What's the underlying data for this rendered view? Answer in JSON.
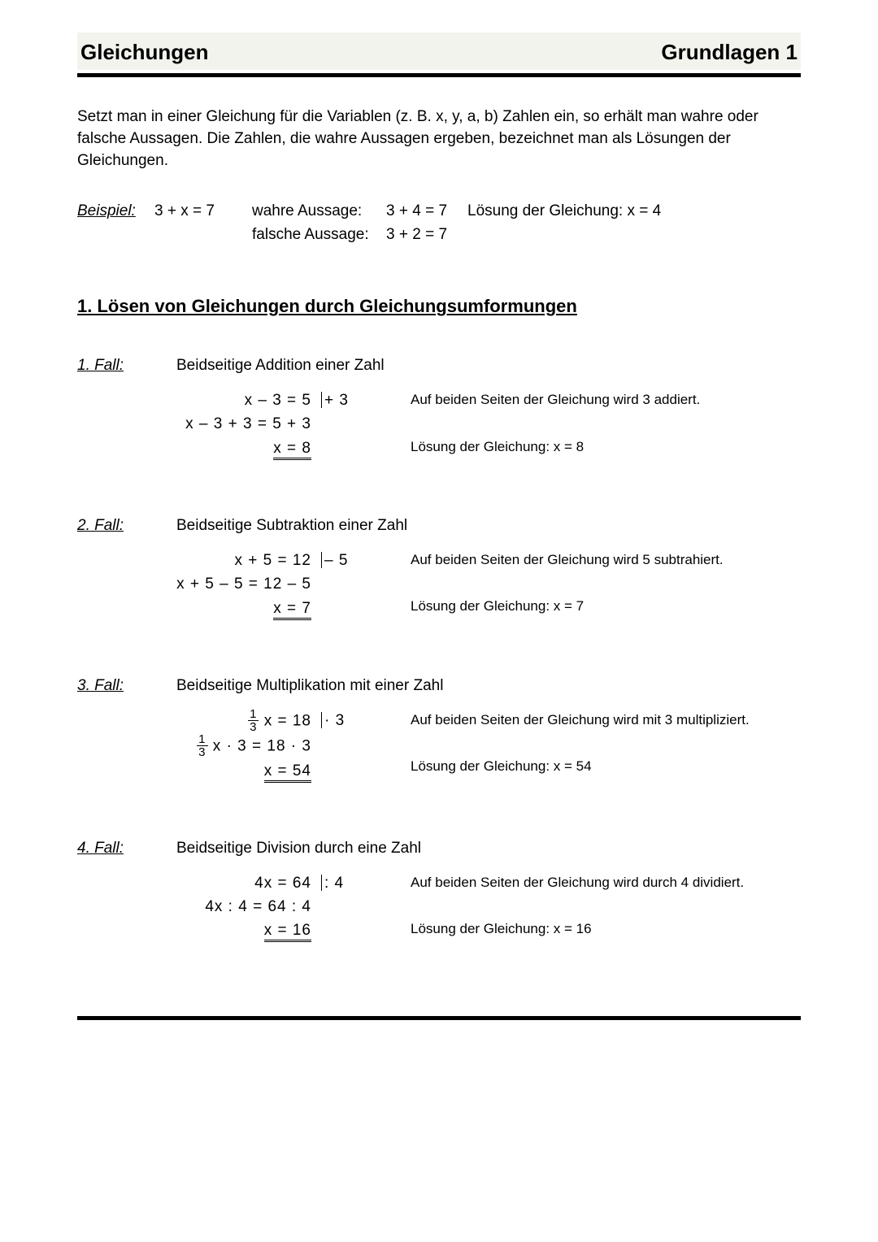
{
  "header": {
    "left": "Gleichungen",
    "right": "Grundlagen 1"
  },
  "intro": {
    "p1": "Setzt man in einer Gleichung für die Variablen (z. B. x, y, a, b) Zahlen ein, so erhält man wahre oder falsche Aussagen. Die Zahlen, die wahre Aussagen ergeben, bezeichnet man als Lösungen der Gleichungen."
  },
  "example": {
    "label": "Beispiel:",
    "equation": "3 + x = 7",
    "true_label": "wahre Aussage:",
    "true_eq": "3 + 4 = 7",
    "false_label": "falsche Aussage:",
    "false_eq": "3 + 2 = 7",
    "solution": "Lösung der Gleichung: x = 4"
  },
  "section_title": "1. Lösen von Gleichungen durch Gleichungsumformungen",
  "cases": [
    {
      "label": "1. Fall:",
      "title": "Beidseitige Addition einer Zahl",
      "lines": [
        "x – 3  =  5",
        "x – 3 + 3  =  5 + 3"
      ],
      "result": "x  =  8",
      "op": "+ 3",
      "note1": "Auf beiden Seiten der Gleichung wird 3 addiert.",
      "note2": "Lösung der Gleichung: x = 8",
      "fraction": false
    },
    {
      "label": "2. Fall:",
      "title": "Beidseitige Subtraktion einer Zahl",
      "lines": [
        "x + 5  =  12",
        "x + 5 – 5  =  12 – 5"
      ],
      "result": "x  =  7",
      "op": "– 5",
      "note1": "Auf beiden Seiten der Gleichung wird 5 subtrahiert.",
      "note2": "Lösung der Gleichung: x = 7",
      "fraction": false
    },
    {
      "label": "3. Fall:",
      "title": "Beidseitige Multiplikation mit einer Zahl",
      "lines": [
        "FRAC x  =  18",
        "FRAC x · 3  =  18 · 3"
      ],
      "result": "x  =  54",
      "op": "· 3",
      "note1": "Auf beiden Seiten der Gleichung wird mit 3 multipliziert.",
      "note2": "Lösung der Gleichung: x = 54",
      "fraction": true,
      "frac_n": "1",
      "frac_d": "3"
    },
    {
      "label": "4. Fall:",
      "title": "Beidseitige Division durch eine Zahl",
      "lines": [
        "4x  =  64",
        "4x : 4  =  64 : 4"
      ],
      "result": "x  =  16",
      "op": ": 4",
      "note1": "Auf beiden Seiten der Gleichung wird durch 4 dividiert.",
      "note2": "Lösung der Gleichung: x = 16",
      "fraction": false
    }
  ]
}
